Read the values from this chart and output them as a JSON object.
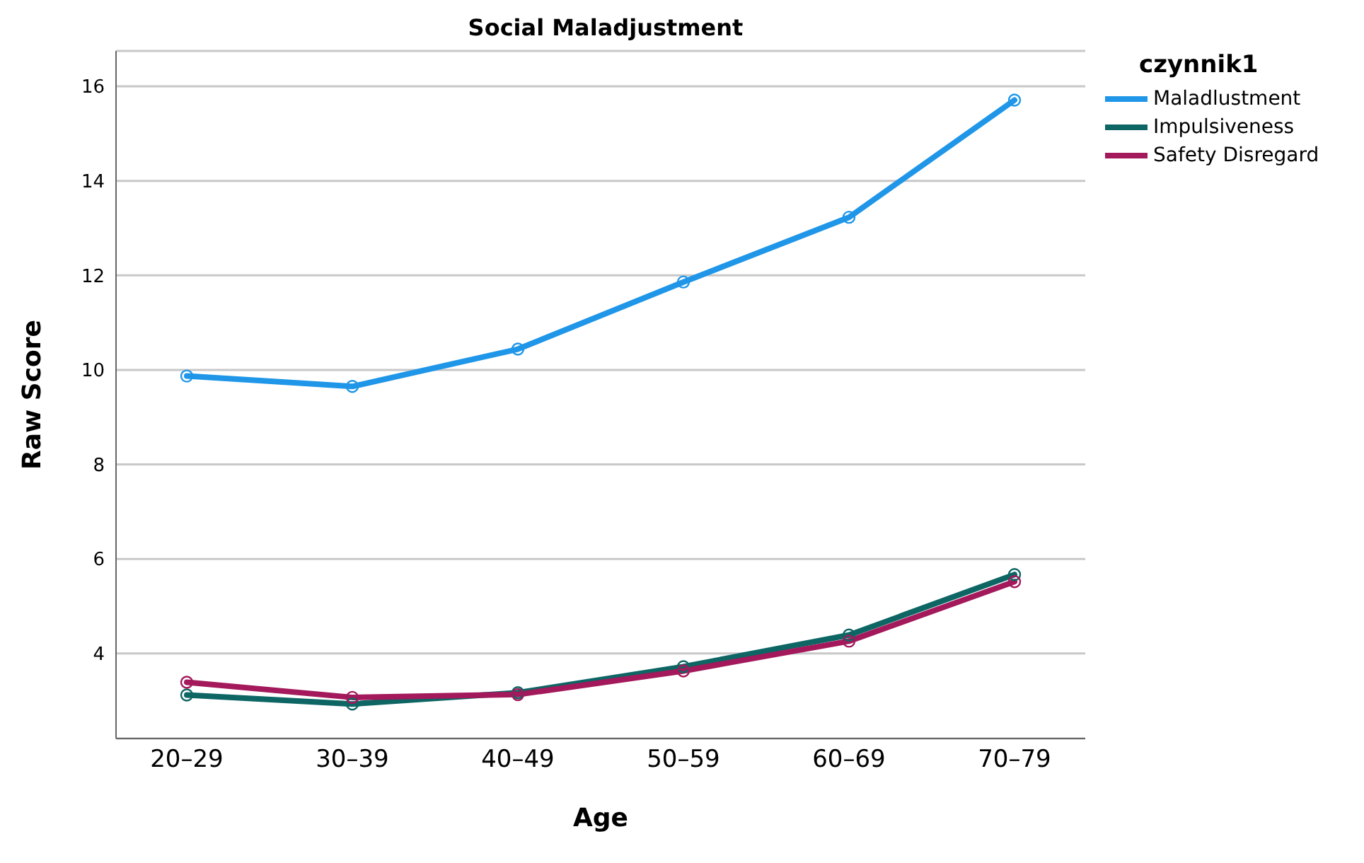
{
  "chart_data": {
    "type": "line",
    "title": "Social Maladjustment",
    "xlabel": "Age",
    "ylabel": "Raw Score",
    "legend_title": "czynnik1",
    "categories": [
      "20–29",
      "30–39",
      "40–49",
      "50–59",
      "60–69",
      "70–79"
    ],
    "series": [
      {
        "name": "Maladlustment",
        "color": "#1f96e8",
        "values": [
          9.87,
          9.65,
          10.44,
          11.86,
          13.23,
          15.71
        ]
      },
      {
        "name": "Impulsiveness",
        "color": "#0d6664",
        "values": [
          3.12,
          2.93,
          3.17,
          3.72,
          4.39,
          5.67
        ]
      },
      {
        "name": "Safety Disregard",
        "color": "#a3195b",
        "values": [
          3.39,
          3.07,
          3.13,
          3.63,
          4.26,
          5.52
        ]
      }
    ],
    "ylim": [
      2.2,
      16.75
    ],
    "yticks": [
      4,
      6,
      8,
      10,
      12,
      14,
      16
    ],
    "grid": "y",
    "legend": "top right",
    "marker": "circle",
    "line_style": "solid"
  }
}
